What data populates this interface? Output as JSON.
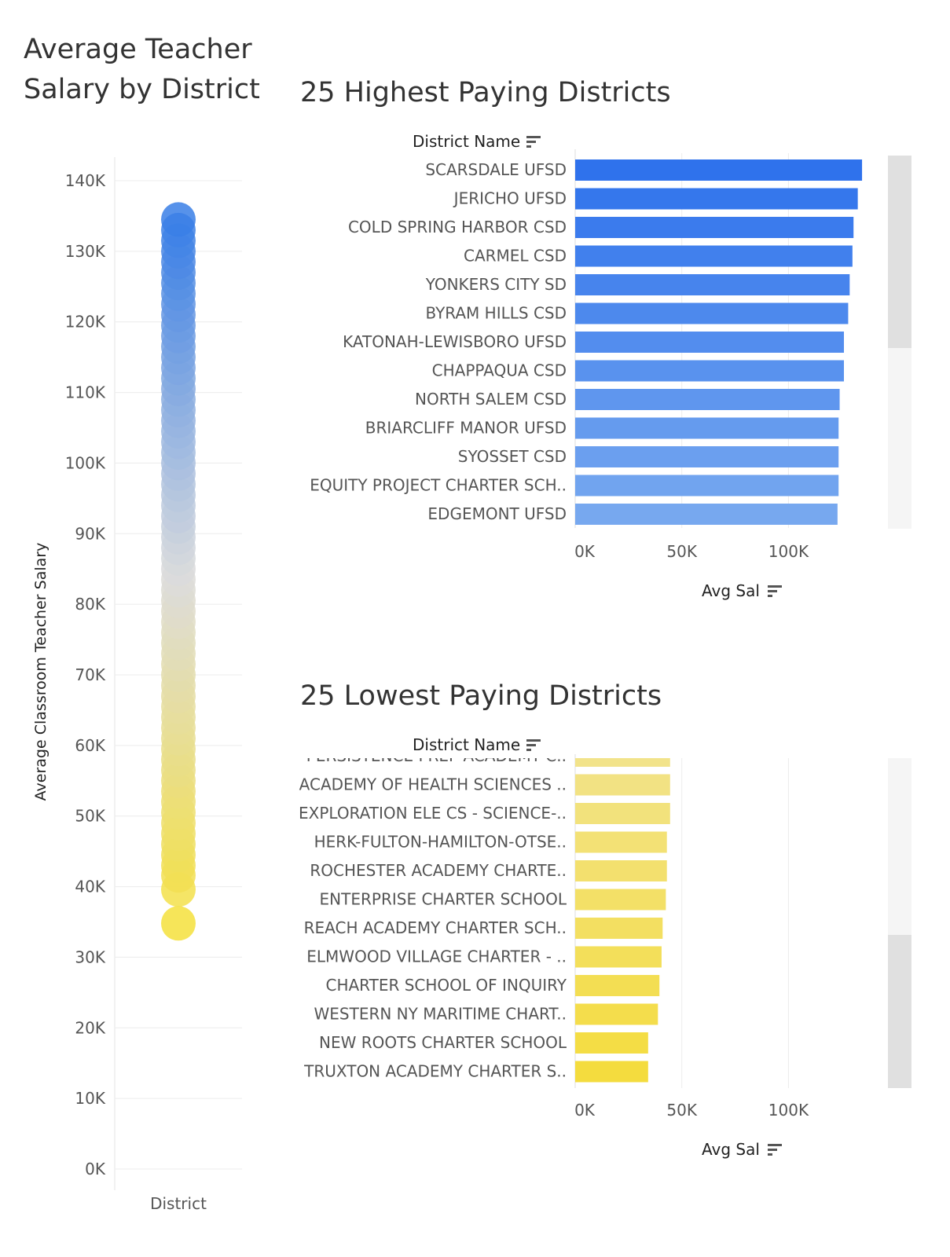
{
  "chart_data": [
    {
      "type": "scatter",
      "title": "Average Teacher Salary by District",
      "xlabel": "District",
      "ylabel": "Average Classroom Teacher Salary",
      "ylim": [
        0,
        140000
      ],
      "y_ticks": [
        "0K",
        "10K",
        "20K",
        "30K",
        "40K",
        "50K",
        "60K",
        "70K",
        "80K",
        "90K",
        "100K",
        "110K",
        "120K",
        "130K",
        "140K"
      ],
      "tick_values": [
        0,
        10000,
        20000,
        30000,
        40000,
        50000,
        60000,
        70000,
        80000,
        90000,
        100000,
        110000,
        120000,
        130000,
        140000
      ],
      "color_scale": [
        "#f5e03c",
        "#dcdcdc",
        "#3a7fe6"
      ],
      "grid": true,
      "values": [
        34800,
        39600,
        41600,
        43000,
        44500,
        46000,
        47500,
        49000,
        50500,
        52000,
        53500,
        55000,
        56500,
        58000,
        59500,
        61000,
        62500,
        64000,
        65500,
        67000,
        68500,
        70000,
        71500,
        73000,
        74500,
        76000,
        77500,
        79000,
        80500,
        82000,
        83500,
        85000,
        86500,
        88000,
        89500,
        91000,
        92500,
        94000,
        95500,
        97000,
        98500,
        100000,
        101500,
        103000,
        104500,
        106000,
        107500,
        109000,
        110500,
        112000,
        113500,
        115000,
        116500,
        118000,
        119500,
        121000,
        122500,
        124000,
        125500,
        127000,
        128500,
        130000,
        131500,
        133000,
        134500
      ]
    },
    {
      "type": "bar",
      "title": "25 Highest Paying Districts",
      "ylabel": "District Name",
      "xlabel": "Avg Sal",
      "xlim": [
        0,
        140000
      ],
      "x_ticks": [
        "0K",
        "50K",
        "100K"
      ],
      "tick_values": [
        0,
        50000,
        100000
      ],
      "categories": [
        "SCARSDALE UFSD",
        "JERICHO UFSD",
        "COLD SPRING HARBOR CSD",
        "CARMEL CSD",
        "YONKERS CITY SD",
        "BYRAM HILLS CSD",
        "KATONAH-LEWISBORO UFSD",
        "CHAPPAQUA CSD",
        "NORTH SALEM CSD",
        "BRIARCLIFF MANOR UFSD",
        "SYOSSET CSD",
        "EQUITY PROJECT CHARTER SCH..",
        "EDGEMONT UFSD"
      ],
      "values": [
        134500,
        132500,
        130500,
        130000,
        128700,
        128000,
        126000,
        126000,
        124000,
        123500,
        123500,
        123500,
        123000
      ],
      "scroll_fraction": 0.0,
      "grid": true
    },
    {
      "type": "bar",
      "title": "25 Lowest Paying Districts",
      "ylabel": "District Name",
      "xlabel": "Avg Sal",
      "xlim": [
        0,
        140000
      ],
      "x_ticks": [
        "0K",
        "50K",
        "100K"
      ],
      "tick_values": [
        0,
        50000,
        100000
      ],
      "categories": [
        "PERSISTENCE PREP ACADEMY C..",
        "ACADEMY OF HEALTH SCIENCES ..",
        "EXPLORATION ELE CS - SCIENCE-..",
        "HERK-FULTON-HAMILTON-OTSE..",
        "ROCHESTER ACADEMY CHARTE..",
        "ENTERPRISE CHARTER SCHOOL",
        "REACH ACADEMY CHARTER SCH..",
        "ELMWOOD VILLAGE CHARTER - ..",
        "CHARTER SCHOOL OF INQUIRY",
        "WESTERN NY MARITIME CHART..",
        "NEW ROOTS CHARTER SCHOOL",
        "TRUXTON ACADEMY CHARTER S.."
      ],
      "values": [
        44500,
        44500,
        44500,
        43000,
        43000,
        42500,
        41000,
        40500,
        39500,
        38800,
        34200,
        34200
      ],
      "scroll_fraction": 1.0,
      "grid": true
    }
  ]
}
